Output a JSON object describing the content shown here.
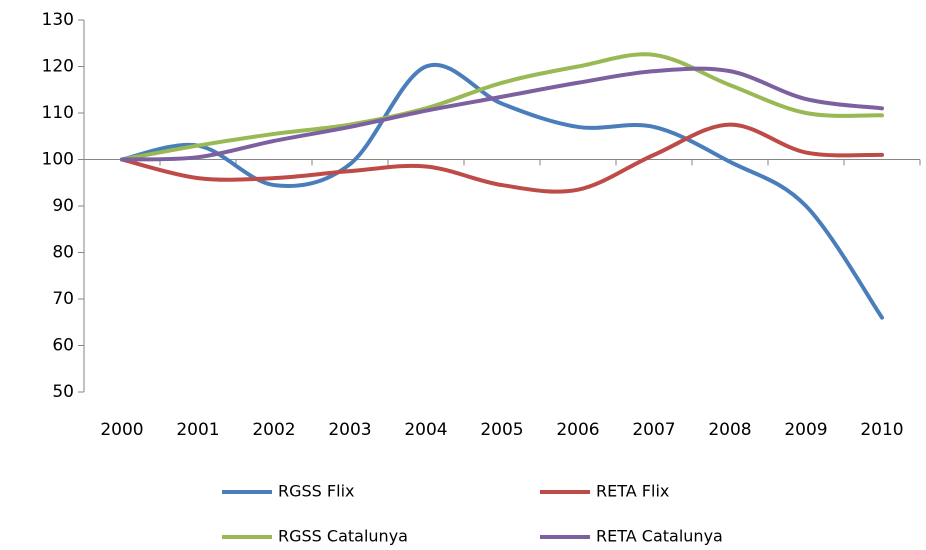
{
  "chart_data": {
    "type": "line",
    "categories": [
      "2000",
      "2001",
      "2002",
      "2003",
      "2004",
      "2005",
      "2006",
      "2007",
      "2008",
      "2009",
      "2010"
    ],
    "series": [
      {
        "name": "RGSS Flix",
        "color": "#4a7ebb",
        "values": [
          100,
          103,
          94.5,
          99,
          120,
          112,
          107,
          107,
          99.5,
          90,
          66
        ]
      },
      {
        "name": "RETA Flix",
        "color": "#be4b48",
        "values": [
          100,
          96,
          96,
          97.5,
          98.5,
          94.5,
          93.5,
          101,
          107.5,
          101.5,
          101
        ]
      },
      {
        "name": "RGSS Catalunya",
        "color": "#98b954",
        "values": [
          100,
          103,
          105.5,
          107.5,
          111,
          116.5,
          120,
          122.5,
          116,
          110,
          109.5
        ]
      },
      {
        "name": "RETA Catalunya",
        "color": "#7d60a0",
        "values": [
          100,
          100.5,
          104,
          107,
          110.5,
          113.5,
          116.5,
          119,
          119,
          113,
          111
        ]
      }
    ],
    "ylim": [
      50,
      130
    ],
    "yticks": [
      50,
      60,
      70,
      80,
      90,
      100,
      110,
      120,
      130
    ],
    "x_axis_crossing": 100,
    "smooth": true,
    "legend": "bottom"
  }
}
